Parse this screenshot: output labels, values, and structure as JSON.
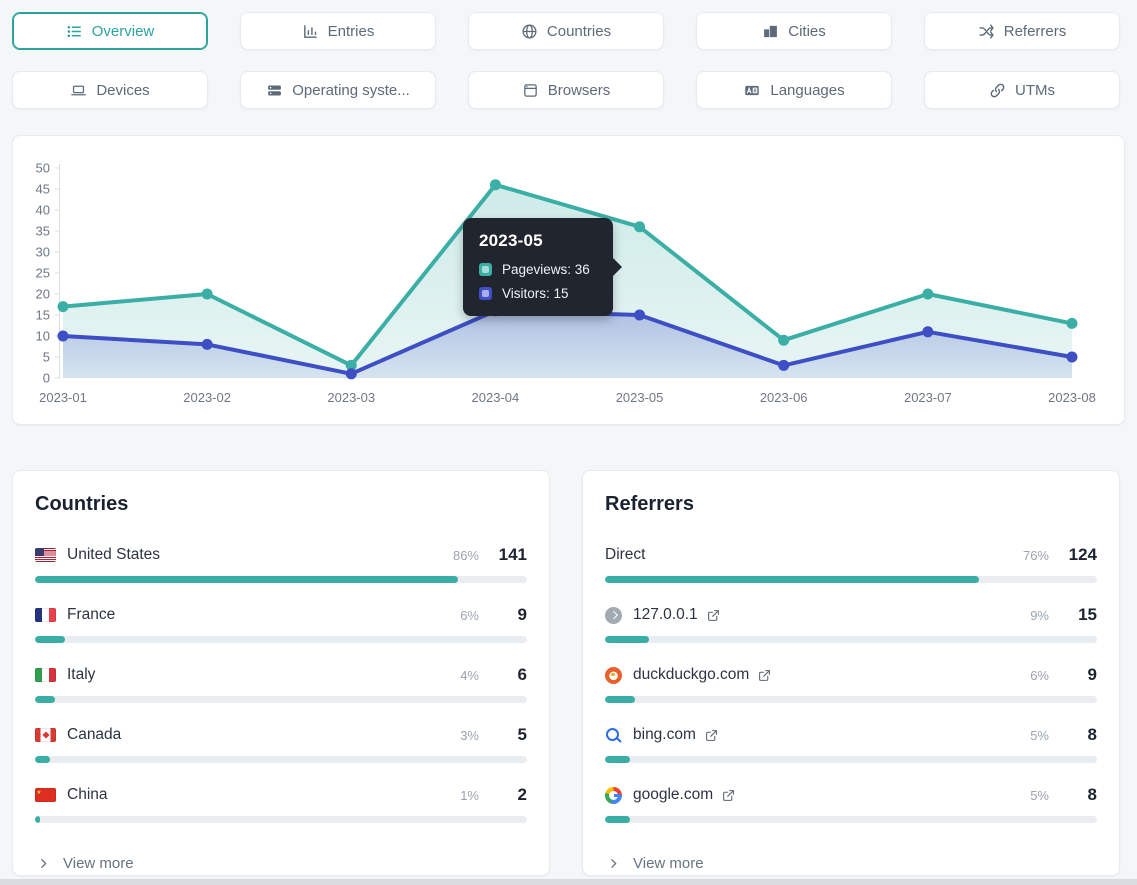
{
  "tabs": {
    "items": [
      {
        "label": "Overview",
        "icon": "list-icon",
        "selected": true
      },
      {
        "label": "Entries",
        "icon": "bar-chart-icon",
        "selected": false
      },
      {
        "label": "Countries",
        "icon": "globe-icon",
        "selected": false
      },
      {
        "label": "Cities",
        "icon": "buildings-icon",
        "selected": false
      },
      {
        "label": "Referrers",
        "icon": "shuffle-icon",
        "selected": false
      },
      {
        "label": "Devices",
        "icon": "laptop-icon",
        "selected": false
      },
      {
        "label": "Operating syste...",
        "icon": "server-icon",
        "selected": false
      },
      {
        "label": "Browsers",
        "icon": "browser-icon",
        "selected": false
      },
      {
        "label": "Languages",
        "icon": "translate-icon",
        "selected": false
      },
      {
        "label": "UTMs",
        "icon": "link-icon",
        "selected": false
      }
    ]
  },
  "chart_data": {
    "type": "line",
    "categories": [
      "2023-01",
      "2023-02",
      "2023-03",
      "2023-04",
      "2023-05",
      "2023-06",
      "2023-07",
      "2023-08"
    ],
    "series": [
      {
        "name": "Pageviews",
        "color": "#3bafa5",
        "values": [
          17,
          20,
          3,
          46,
          36,
          9,
          20,
          13
        ]
      },
      {
        "name": "Visitors",
        "color": "#3e4ec4",
        "values": [
          10,
          8,
          1,
          16,
          15,
          3,
          11,
          5
        ]
      }
    ],
    "title": "",
    "xlabel": "",
    "ylabel": "",
    "ylim": [
      0,
      50
    ],
    "ytick_step": 5,
    "grid": false,
    "legend_position": "tooltip"
  },
  "chart_tooltip": {
    "title": "2023-05",
    "rows": [
      {
        "series": "Pageviews",
        "text": "Pageviews: 36",
        "color": "#3bafa5"
      },
      {
        "series": "Visitors",
        "text": "Visitors: 15",
        "color": "#4050c8"
      }
    ]
  },
  "countries": {
    "title": "Countries",
    "view_more": "View more",
    "rows": [
      {
        "name": "United States",
        "flag": "us",
        "percent": "86%",
        "value": "141",
        "bar": 86
      },
      {
        "name": "France",
        "flag": "fr",
        "percent": "6%",
        "value": "9",
        "bar": 6
      },
      {
        "name": "Italy",
        "flag": "it",
        "percent": "4%",
        "value": "6",
        "bar": 4
      },
      {
        "name": "Canada",
        "flag": "ca",
        "percent": "3%",
        "value": "5",
        "bar": 3
      },
      {
        "name": "China",
        "flag": "cn",
        "percent": "1%",
        "value": "2",
        "bar": 1
      }
    ]
  },
  "referrers": {
    "title": "Referrers",
    "view_more": "View more",
    "rows": [
      {
        "name": "Direct",
        "icon": "none",
        "external": false,
        "percent": "76%",
        "value": "124",
        "bar": 76
      },
      {
        "name": "127.0.0.1",
        "icon": "globe-gray",
        "external": true,
        "percent": "9%",
        "value": "15",
        "bar": 9
      },
      {
        "name": "duckduckgo.com",
        "icon": "duckduckgo",
        "external": true,
        "percent": "6%",
        "value": "9",
        "bar": 6
      },
      {
        "name": "bing.com",
        "icon": "bing",
        "external": true,
        "percent": "5%",
        "value": "8",
        "bar": 5
      },
      {
        "name": "google.com",
        "icon": "google",
        "external": true,
        "percent": "5%",
        "value": "8",
        "bar": 5
      }
    ]
  },
  "colors": {
    "accent_teal": "#3bafa5",
    "accent_indigo": "#3e4ec4",
    "selected_tab": "#2ba39c",
    "bar_fill": "#3aaea4",
    "bar_track": "#e9edef",
    "tooltip_bg": "#21262e",
    "page_bg": "#f4f7f8"
  }
}
